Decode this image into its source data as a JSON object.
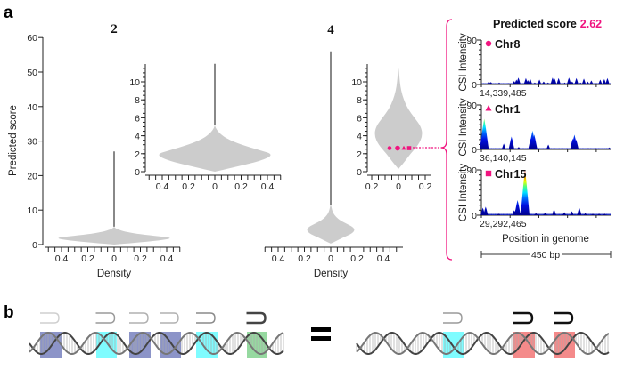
{
  "panel_labels": {
    "a": "a",
    "b": "b"
  },
  "colors": {
    "highlight": "#f0147f",
    "violin": "#cccccc",
    "purple_box": "#8c94c8",
    "cyan_box": "#7ffcff",
    "green_box": "#96d9a0",
    "red_box": "#f48a8a"
  },
  "chart_data": [
    {
      "type": "violin",
      "title": "2",
      "ylabel": "Predicted score",
      "xlabel": "Density",
      "ylim": [
        0,
        60
      ],
      "yticks": [
        "0",
        "10",
        "20",
        "30",
        "40",
        "50",
        "60"
      ],
      "xtick_labels": [
        "0.4",
        "0.2",
        "0",
        "0.2",
        "0.4"
      ],
      "max_score": 27,
      "profile": [
        [
          0,
          0
        ],
        [
          0.5,
          0.15
        ],
        [
          1.2,
          0.35
        ],
        [
          1.9,
          0.45
        ],
        [
          2.4,
          0.34
        ],
        [
          3.0,
          0.2
        ],
        [
          3.6,
          0.1
        ],
        [
          4.2,
          0.04
        ],
        [
          4.8,
          0.008
        ],
        [
          5.2,
          0
        ]
      ],
      "inset": {
        "ylim": [
          0,
          12
        ],
        "yticks": [
          "0",
          "2",
          "4",
          "6",
          "8",
          "10"
        ],
        "xtick_labels": [
          "0.4",
          "0.2",
          "0",
          "0.2",
          "0.4"
        ]
      }
    },
    {
      "type": "violin",
      "title": "4",
      "xlabel": "Density",
      "ylim": [
        0,
        60
      ],
      "xtick_labels": [
        "0.4",
        "0.2",
        "0",
        "0.2",
        "0.4"
      ],
      "max_score": 56,
      "profile": [
        [
          0.3,
          0
        ],
        [
          1,
          0.04
        ],
        [
          2,
          0.09
        ],
        [
          3,
          0.15
        ],
        [
          4,
          0.18
        ],
        [
          5,
          0.17
        ],
        [
          6,
          0.12
        ],
        [
          7,
          0.07
        ],
        [
          8,
          0.04
        ],
        [
          9,
          0.02
        ],
        [
          10,
          0.01
        ],
        [
          11.5,
          0.002
        ]
      ],
      "inset": {
        "ylim": [
          0,
          12
        ],
        "yticks": [
          "0",
          "2",
          "4",
          "6",
          "8",
          "10"
        ],
        "xtick_labels": [
          "0.2",
          "0",
          "0.2"
        ],
        "highlighted_points": [
          {
            "marker": "circle",
            "score": 2.62
          },
          {
            "marker": "circle",
            "score": 2.62
          },
          {
            "marker": "triangle",
            "score": 2.62
          },
          {
            "marker": "square",
            "score": 2.62
          }
        ]
      }
    },
    {
      "type": "bar",
      "title": "Predicted score",
      "title_value": "2.62",
      "ylabel": "CSI Intensity",
      "xlabel": "Position in genome",
      "scale_bar": "450 bp",
      "xlim_bp": [
        0,
        450
      ],
      "tracks": [
        {
          "name": "Chr8",
          "marker": "circle",
          "start": "14,339,485",
          "ylim": [
            0,
            90
          ],
          "yticks": [
            "0",
            "90"
          ],
          "peaks": [
            [
              26,
              6
            ],
            [
              33,
              5
            ],
            [
              62,
              4
            ],
            [
              95,
              3
            ],
            [
              114,
              7
            ],
            [
              122,
              10
            ],
            [
              129,
              14
            ],
            [
              155,
              13
            ],
            [
              162,
              9
            ],
            [
              170,
              12
            ],
            [
              186,
              4
            ],
            [
              202,
              10
            ],
            [
              217,
              6
            ],
            [
              232,
              4
            ],
            [
              248,
              14
            ],
            [
              255,
              12
            ],
            [
              269,
              13
            ],
            [
              290,
              4
            ],
            [
              305,
              14
            ],
            [
              316,
              6
            ],
            [
              331,
              13
            ],
            [
              345,
              4
            ],
            [
              357,
              12
            ],
            [
              370,
              6
            ],
            [
              383,
              8
            ],
            [
              400,
              3
            ],
            [
              414,
              10
            ],
            [
              428,
              11
            ],
            [
              439,
              13
            ]
          ]
        },
        {
          "name": "Chr1",
          "marker": "triangle",
          "start": "36,140,145",
          "ylim": [
            0,
            90
          ],
          "yticks": [
            "0",
            "90"
          ],
          "peaks": [
            [
              4,
              30
            ],
            [
              10,
              62
            ],
            [
              16,
              25
            ],
            [
              78,
              12
            ],
            [
              105,
              26
            ],
            [
              130,
              5
            ],
            [
              172,
              22
            ],
            [
              178,
              38
            ],
            [
              184,
              30
            ],
            [
              233,
              10
            ],
            [
              318,
              22
            ],
            [
              324,
              30
            ],
            [
              330,
              20
            ],
            [
              372,
              3
            ],
            [
              398,
              3
            ],
            [
              445,
              4
            ]
          ]
        },
        {
          "name": "Chr15",
          "marker": "square",
          "start": "29,292,465",
          "ylim": [
            0,
            90
          ],
          "yticks": [
            "0",
            "90"
          ],
          "peaks": [
            [
              5,
              15
            ],
            [
              15,
              17
            ],
            [
              60,
              3
            ],
            [
              114,
              10
            ],
            [
              120,
              12
            ],
            [
              126,
              30
            ],
            [
              140,
              10
            ],
            [
              152,
              90
            ],
            [
              190,
              4
            ],
            [
              222,
              5
            ],
            [
              253,
              12
            ],
            [
              289,
              6
            ],
            [
              315,
              8
            ],
            [
              341,
              15
            ],
            [
              362,
              4
            ],
            [
              388,
              3
            ],
            [
              410,
              3
            ],
            [
              429,
              3
            ]
          ]
        }
      ]
    }
  ],
  "diagram": {
    "equals": "=",
    "left_boxes": [
      "purple_box",
      "cyan_box",
      "purple_box",
      "purple_box",
      "cyan_box",
      "green_box"
    ],
    "left_bracket_shades": [
      "#cfcfcf",
      "#9a9a9a",
      "#b0b0b0",
      "#b0b0b0",
      "#8a8a8a",
      "#444444"
    ],
    "right_boxes": [
      "cyan_box",
      "red_box",
      "red_box"
    ],
    "right_bracket_shades": [
      "#9a9a9a",
      "#111111",
      "#111111"
    ]
  }
}
